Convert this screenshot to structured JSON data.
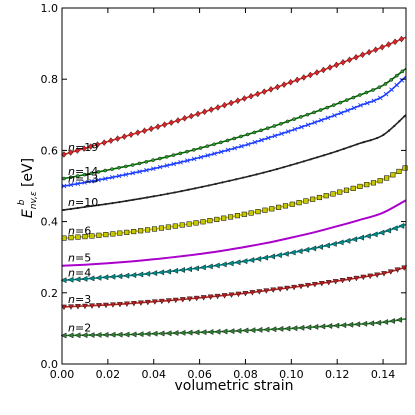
{
  "chart_data": {
    "type": "line",
    "xlabel": "volumetric strain",
    "ylabel": {
      "base": "E",
      "sup": "b",
      "sub": "nv,ε",
      "unit": "[eV]"
    },
    "xlim": [
      0.0,
      0.15
    ],
    "ylim": [
      0.0,
      1.0
    ],
    "xticks": [
      "0.00",
      "0.02",
      "0.04",
      "0.06",
      "0.08",
      "0.10",
      "0.12",
      "0.14"
    ],
    "yticks": [
      "0.0",
      "0.2",
      "0.4",
      "0.6",
      "0.8",
      "1.0"
    ],
    "grid": false,
    "x": [
      0.0,
      0.01,
      0.02,
      0.03,
      0.04,
      0.05,
      0.06,
      0.07,
      0.08,
      0.09,
      0.1,
      0.11,
      0.12,
      0.13,
      0.14,
      0.15
    ],
    "series": [
      {
        "name": "n=19",
        "label": "n=19",
        "color": "#d62728",
        "marker": "diamond",
        "values": [
          0.587,
          0.606,
          0.625,
          0.644,
          0.663,
          0.683,
          0.704,
          0.725,
          0.747,
          0.769,
          0.792,
          0.816,
          0.841,
          0.866,
          0.891,
          0.918
        ]
      },
      {
        "name": "n=14",
        "label": "n=14",
        "color": "#2ca02c",
        "line_color": "#006400",
        "marker": "circle",
        "values": [
          0.52,
          0.532,
          0.545,
          0.558,
          0.573,
          0.589,
          0.606,
          0.624,
          0.643,
          0.663,
          0.685,
          0.707,
          0.731,
          0.756,
          0.783,
          0.83
        ]
      },
      {
        "name": "n=13",
        "label": "n=13",
        "color": "#1f3fff",
        "marker": "x",
        "values": [
          0.499,
          0.51,
          0.522,
          0.535,
          0.549,
          0.564,
          0.58,
          0.597,
          0.615,
          0.635,
          0.656,
          0.678,
          0.701,
          0.726,
          0.752,
          0.808
        ]
      },
      {
        "name": "n=10",
        "label": "n=10",
        "color": "#222222",
        "marker": "dot",
        "values": [
          0.432,
          0.441,
          0.45,
          0.46,
          0.471,
          0.483,
          0.496,
          0.51,
          0.525,
          0.541,
          0.559,
          0.578,
          0.598,
          0.62,
          0.643,
          0.7
        ]
      },
      {
        "name": "n=6",
        "label": "n=6",
        "color": "#c8c800",
        "marker": "square",
        "values": [
          0.353,
          0.358,
          0.364,
          0.371,
          0.379,
          0.388,
          0.398,
          0.409,
          0.421,
          0.434,
          0.448,
          0.464,
          0.481,
          0.499,
          0.518,
          0.552
        ]
      },
      {
        "name": "n=5",
        "label": "n=5",
        "color": "#aa00cc",
        "marker": "none",
        "values": [
          0.276,
          0.279,
          0.283,
          0.288,
          0.294,
          0.301,
          0.309,
          0.318,
          0.329,
          0.341,
          0.355,
          0.37,
          0.387,
          0.405,
          0.425,
          0.46
        ]
      },
      {
        "name": "n=4",
        "label": "n=4",
        "color": "#008b8b",
        "marker": "triangle-left",
        "values": [
          0.235,
          0.239,
          0.244,
          0.249,
          0.255,
          0.262,
          0.27,
          0.279,
          0.289,
          0.3,
          0.312,
          0.325,
          0.339,
          0.354,
          0.37,
          0.392
        ]
      },
      {
        "name": "n=3",
        "label": "n=3",
        "color": "#b22222",
        "marker": "triangle-down",
        "values": [
          0.16,
          0.163,
          0.166,
          0.17,
          0.175,
          0.18,
          0.186,
          0.192,
          0.199,
          0.207,
          0.215,
          0.224,
          0.233,
          0.243,
          0.254,
          0.272
        ]
      },
      {
        "name": "n=2",
        "label": "n=2",
        "color": "#2e7d32",
        "marker": "triangle-left",
        "values": [
          0.08,
          0.081,
          0.082,
          0.083,
          0.085,
          0.087,
          0.089,
          0.091,
          0.094,
          0.097,
          0.1,
          0.104,
          0.108,
          0.112,
          0.117,
          0.127
        ]
      }
    ]
  }
}
